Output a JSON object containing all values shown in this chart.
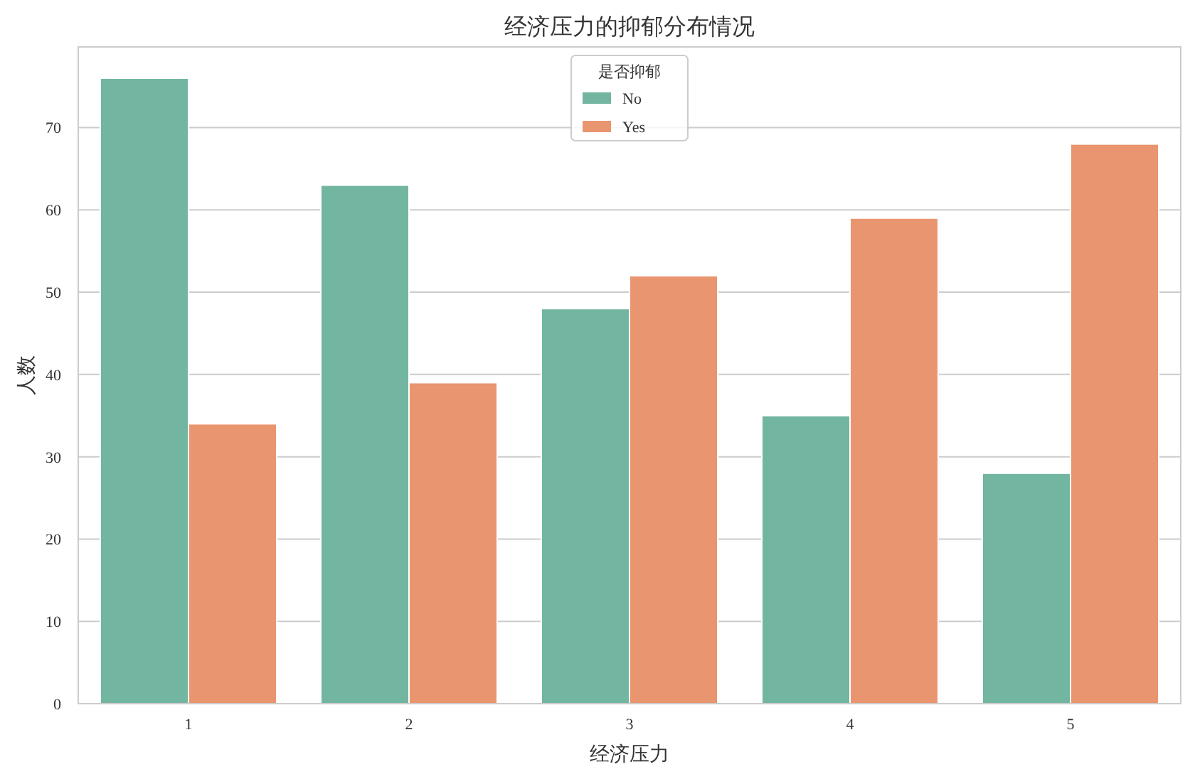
{
  "chart_data": {
    "type": "bar",
    "title": "经济压力的抑郁分布情况",
    "xlabel": "经济压力",
    "ylabel": "人数",
    "legend_title": "是否抑郁",
    "categories": [
      "1",
      "2",
      "3",
      "4",
      "5"
    ],
    "series": [
      {
        "name": "No",
        "color": "#72b5a0",
        "values": [
          76,
          63,
          48,
          35,
          28
        ]
      },
      {
        "name": "Yes",
        "color": "#e9956f",
        "values": [
          34,
          39,
          52,
          59,
          68
        ]
      }
    ],
    "ylim": [
      0,
      79.8
    ],
    "yticks": [
      0,
      10,
      20,
      30,
      40,
      50,
      60,
      70
    ],
    "grid": "y",
    "legend": "top"
  }
}
